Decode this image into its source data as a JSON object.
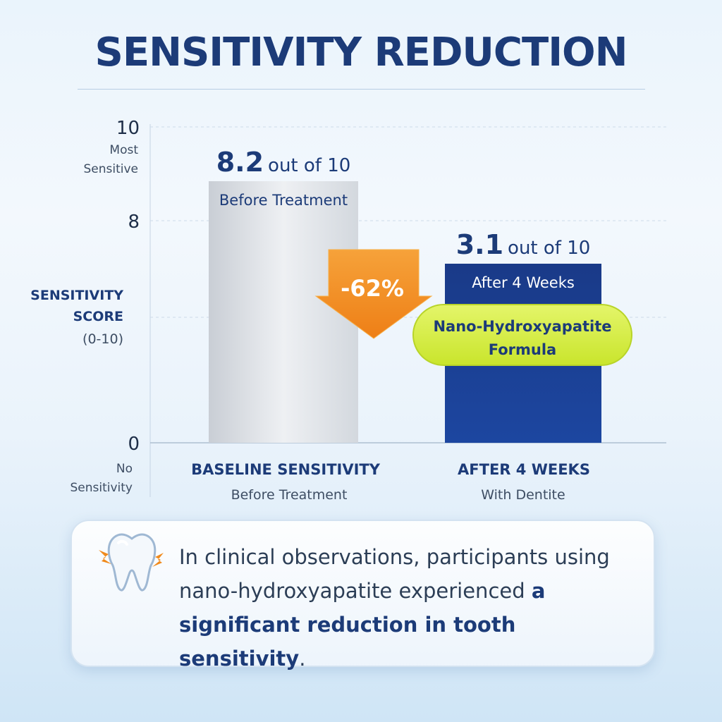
{
  "title": "SENSITIVITY REDUCTION",
  "chart_data": {
    "type": "bar",
    "y_axis": {
      "label_lines": [
        "SENSITIVITY",
        "SCORE",
        "(0-10)"
      ],
      "ticks": [
        0,
        8,
        10
      ],
      "top_label_lines": [
        "Most",
        "Sensitive"
      ],
      "bottom_label_lines": [
        "No",
        "Sensitivity"
      ],
      "ylim": [
        0,
        10
      ]
    },
    "categories": [
      {
        "name": "BASELINE SENSITIVITY",
        "sub": "Before Treatment"
      },
      {
        "name": "AFTER 4 WEEKS",
        "sub": "With Dentite"
      }
    ],
    "values": [
      8.2,
      3.1
    ],
    "value_suffix": "out of 10",
    "bar_labels": [
      "Before Treatment",
      "After 4 Weeks"
    ],
    "bar_colors": [
      "#d6dbe1",
      "#1b3f8f"
    ],
    "reduction_label": "-62%",
    "reduction_color": "#f08a1c",
    "badge_lines": [
      "Nano-Hydroxyapatite",
      "Formula"
    ],
    "badge_color": "#d6ee3a"
  },
  "callout": {
    "text_plain": "In clinical observations, participants using nano-hydroxyapatite experienced ",
    "text_bold": "a significant reduction in tooth sensitivity",
    "text_end": "."
  }
}
